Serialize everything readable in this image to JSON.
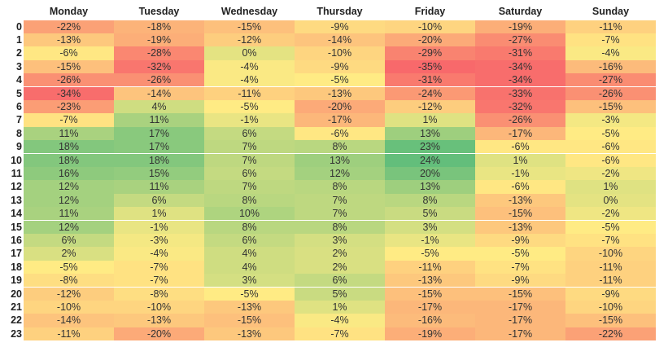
{
  "chart_data": {
    "type": "heatmap",
    "title": "",
    "columns": [
      "Monday",
      "Tuesday",
      "Wednesday",
      "Thursday",
      "Friday",
      "Saturday",
      "Sunday"
    ],
    "rows": [
      "0",
      "1",
      "2",
      "3",
      "4",
      "5",
      "6",
      "7",
      "8",
      "9",
      "10",
      "11",
      "12",
      "13",
      "14",
      "15",
      "16",
      "17",
      "18",
      "19",
      "20",
      "21",
      "22",
      "23"
    ],
    "values": [
      [
        -22,
        -18,
        -15,
        -9,
        -10,
        -19,
        -11
      ],
      [
        -13,
        -19,
        -12,
        -14,
        -20,
        -27,
        -7
      ],
      [
        -6,
        -28,
        0,
        -10,
        -29,
        -31,
        -4
      ],
      [
        -15,
        -32,
        -4,
        -9,
        -35,
        -34,
        -16
      ],
      [
        -26,
        -26,
        -4,
        -5,
        -31,
        -34,
        -27
      ],
      [
        -34,
        -14,
        -11,
        -13,
        -24,
        -33,
        -26
      ],
      [
        -23,
        4,
        -5,
        -20,
        -12,
        -32,
        -15
      ],
      [
        -7,
        11,
        -1,
        -17,
        1,
        -26,
        -3
      ],
      [
        11,
        17,
        6,
        -6,
        13,
        -17,
        -5
      ],
      [
        18,
        17,
        7,
        8,
        23,
        -6,
        -6
      ],
      [
        18,
        18,
        7,
        13,
        24,
        1,
        -6
      ],
      [
        16,
        15,
        6,
        12,
        20,
        -1,
        -2
      ],
      [
        12,
        11,
        7,
        8,
        13,
        -6,
        1
      ],
      [
        12,
        6,
        8,
        7,
        8,
        -13,
        0
      ],
      [
        11,
        1,
        10,
        7,
        5,
        -15,
        -2
      ],
      [
        12,
        -1,
        8,
        8,
        3,
        -13,
        -5
      ],
      [
        6,
        -3,
        6,
        3,
        -1,
        -9,
        -7
      ],
      [
        2,
        -4,
        4,
        2,
        -5,
        -5,
        -10
      ],
      [
        -5,
        -7,
        4,
        2,
        -11,
        -7,
        -11
      ],
      [
        -8,
        -7,
        3,
        6,
        -13,
        -9,
        -11
      ],
      [
        -12,
        -8,
        -5,
        5,
        -15,
        -15,
        -9
      ],
      [
        -10,
        -10,
        -13,
        1,
        -17,
        -17,
        -10
      ],
      [
        -14,
        -13,
        -15,
        -4,
        -16,
        -17,
        -15
      ],
      [
        -11,
        -20,
        -13,
        -7,
        -19,
        -17,
        -22
      ]
    ],
    "value_suffix": "%",
    "color_scale": {
      "min_color": "#F8696B",
      "mid_color": "#FFEB84",
      "max_color": "#63BE7B",
      "min": -35,
      "mid": -5,
      "max": 24
    }
  }
}
